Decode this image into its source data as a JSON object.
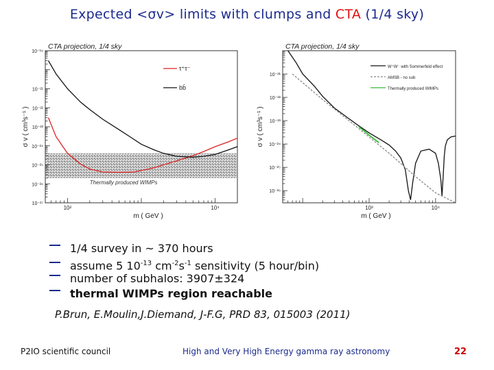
{
  "slide": {
    "title_prefix": "Expected <σv> limits with clumps and ",
    "title_highlight": "CTA",
    "title_suffix": " (1/4 sky)",
    "accent_color": "#1a2a8c",
    "highlight_color": "#e01010"
  },
  "bullets": {
    "b1": "1/4 survey in ~ 370 hours",
    "b2_pre": "assume 5 10",
    "b2_exp1": "-13",
    "b2_mid": " cm",
    "b2_exp2": "-2",
    "b2_mid2": "s",
    "b2_exp3": "-1",
    "b2_post": " sensitivity (5 hour/bin)",
    "b3": "number of subhalos: 3907±324",
    "b4": "thermal WIMPs region reachable"
  },
  "citation": "P.Brun, E.Moulin,J.Diemand, J-F.G, PRD 83, 015003 (2011)",
  "footer": {
    "left": "P2IO scientific council",
    "center": "High and Very High Energy gamma ray astronomy",
    "page": "22"
  },
  "chart_data": [
    {
      "type": "line",
      "title": "CTA projection, 1/4 sky",
      "xlabel": "m  ( GeV )",
      "ylabel": "σ v  ( cm³s⁻¹ )",
      "x_scale": "log",
      "y_scale": "log",
      "xlim": [
        50,
        20000
      ],
      "ylim": [
        1e-27,
        1e-19
      ],
      "x_ticks": [
        {
          "v": 100,
          "label": "10²"
        },
        {
          "v": 10000,
          "label": "10⁴"
        }
      ],
      "y_ticks": [
        {
          "v": 1e-19,
          "label": "10⁻¹⁹"
        },
        {
          "v": 1e-21,
          "label": "10⁻²¹"
        },
        {
          "v": 1e-22,
          "label": "10⁻²²"
        },
        {
          "v": 1e-23,
          "label": "10⁻²³"
        },
        {
          "v": 1e-24,
          "label": "10⁻²⁴"
        },
        {
          "v": 1e-25,
          "label": "10⁻²⁵"
        },
        {
          "v": 1e-26,
          "label": "10⁻²⁶"
        },
        {
          "v": 1e-27,
          "label": "10⁻²⁷"
        }
      ],
      "band": {
        "y_low": 2e-26,
        "y_high": 4e-25,
        "label": "Thermally produced WIMPs"
      },
      "legend": "top-right",
      "series": [
        {
          "name": "τ⁺τ⁻",
          "color": "#dd2222",
          "x": [
            55,
            70,
            100,
            150,
            200,
            300,
            500,
            800,
            1000,
            1500,
            2000,
            3000,
            5000,
            7000,
            10000,
            15000,
            20000
          ],
          "y": [
            3e-23,
            3e-24,
            4e-25,
            1.1e-25,
            6e-26,
            4.2e-26,
            4e-26,
            4.2e-26,
            5e-26,
            7e-26,
            1e-25,
            1.6e-25,
            3e-25,
            5e-25,
            9e-25,
            1.6e-24,
            2.5e-24
          ]
        },
        {
          "name": "bb̄",
          "color": "#111111",
          "x": [
            55,
            70,
            100,
            150,
            200,
            300,
            500,
            700,
            1000,
            1500,
            2000,
            3000,
            5000,
            7000,
            10000,
            15000,
            20000
          ],
          "y": [
            3e-20,
            6e-21,
            1e-21,
            2e-22,
            8e-23,
            2.5e-23,
            7e-24,
            3e-24,
            1.2e-24,
            6e-25,
            4e-25,
            2.8e-25,
            2.5e-25,
            2.8e-25,
            3.5e-25,
            6e-25,
            9e-25
          ]
        }
      ]
    },
    {
      "type": "line",
      "title": "CTA projection, 1/4 sky",
      "xlabel": "m  ( GeV )",
      "ylabel": "σ v  ( cm³s⁻¹ )",
      "x_scale": "log",
      "y_scale": "log",
      "xlim": [
        50,
        20000
      ],
      "ylim": [
        3e-27,
        1e-20
      ],
      "x_ticks": [
        {
          "v": 1000,
          "label": "10³"
        },
        {
          "v": 10000,
          "label": "10⁴"
        }
      ],
      "y_ticks": [
        {
          "v": 1e-21,
          "label": "10⁻²¹"
        },
        {
          "v": 1e-22,
          "label": "10⁻²²"
        },
        {
          "v": 1e-23,
          "label": "10⁻²³"
        },
        {
          "v": 1e-24,
          "label": "10⁻²⁴"
        },
        {
          "v": 1e-25,
          "label": "10⁻²⁵"
        },
        {
          "v": 1e-26,
          "label": "10⁻²⁶"
        }
      ],
      "legend": "top-right",
      "series": [
        {
          "name": "W⁺W⁻ with Sommerfeld effect",
          "color": "#111111",
          "style": "solid",
          "x": [
            60,
            80,
            100,
            150,
            200,
            300,
            500,
            700,
            1000,
            1500,
            2000,
            2500,
            3000,
            3500,
            3900,
            4200,
            4500,
            5000,
            6000,
            8000,
            10000,
            11000,
            12000,
            12500,
            13000,
            13500,
            14000,
            15000,
            17000,
            20000
          ],
          "y": [
            1e-20,
            3e-21,
            1e-21,
            3e-22,
            1.1e-22,
            3.5e-23,
            1.2e-23,
            6e-24,
            3e-24,
            1.5e-24,
            9e-25,
            5e-25,
            2.5e-25,
            8e-26,
            1e-26,
            4e-27,
            2e-26,
            1.5e-25,
            5e-25,
            6e-25,
            4e-25,
            1.5e-25,
            3e-26,
            6e-27,
            4e-26,
            3e-25,
            8e-25,
            1.5e-24,
            2e-24,
            2.2e-24
          ]
        },
        {
          "name": "AMSB - no sub",
          "color": "#888888",
          "style": "dashed",
          "x": [
            70,
            200,
            500,
            1000,
            2000,
            5000,
            10000,
            20000
          ],
          "y": [
            1e-21,
            8e-23,
            1e-23,
            2e-24,
            4e-25,
            4e-26,
            8e-27,
            3e-27
          ]
        },
        {
          "name": "Thermally produced WIMPs",
          "color": "#33bb33",
          "style": "solid",
          "x": [
            700,
            850,
            1000,
            1200,
            1400
          ],
          "y": [
            5.5e-24,
            3.5e-24,
            2.4e-24,
            1.6e-24,
            1.15e-24
          ]
        }
      ]
    }
  ]
}
